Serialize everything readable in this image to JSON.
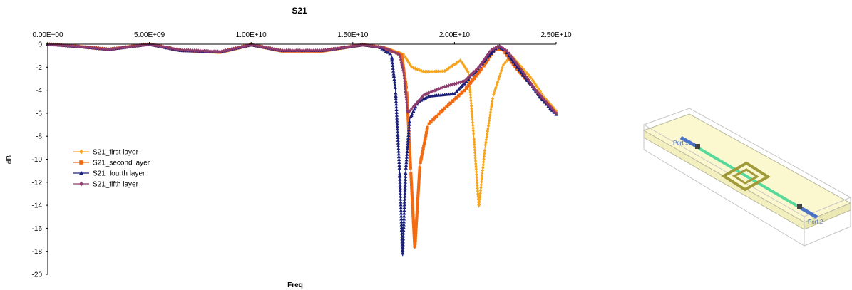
{
  "chart_data": {
    "type": "line",
    "title": "S21",
    "xlabel": "Freq",
    "ylabel": "dB",
    "xlim": [
      0,
      25000000000
    ],
    "ylim": [
      -20,
      0
    ],
    "x_axis_position": "top",
    "grid": false,
    "legend_position": "left",
    "xticks": [
      0,
      5000000000,
      10000000000,
      15000000000,
      20000000000,
      25000000000
    ],
    "xtick_labels": [
      "0.00E+00",
      "5.00E+09",
      "1.00E+10",
      "1.50E+10",
      "2.00E+10",
      "2.50E+10"
    ],
    "yticks": [
      0,
      -2,
      -4,
      -6,
      -8,
      -10,
      -12,
      -14,
      -16,
      -18,
      -20
    ],
    "ytick_labels": [
      "0",
      "-2",
      "-4",
      "-6",
      "-8",
      "-10",
      "-12",
      "-14",
      "-16",
      "-18",
      "-20"
    ],
    "series": [
      {
        "name": "S21_first layer",
        "color": "#f7a51d",
        "marker": "diamond",
        "points": [
          [
            0,
            0
          ],
          [
            1500000000.0,
            -0.2
          ],
          [
            3000000000.0,
            -0.45
          ],
          [
            5000000000.0,
            0
          ],
          [
            6500000000.0,
            -0.5
          ],
          [
            8500000000.0,
            -0.7
          ],
          [
            10000000000.0,
            -0.05
          ],
          [
            11500000000.0,
            -0.55
          ],
          [
            13500000000.0,
            -0.6
          ],
          [
            15500000000.0,
            -0.05
          ],
          [
            16500000000.0,
            -0.3
          ],
          [
            17500000000.0,
            -0.9
          ],
          [
            17900000000.0,
            -2.0
          ],
          [
            18500000000.0,
            -2.4
          ],
          [
            19500000000.0,
            -2.35
          ],
          [
            20300000000.0,
            -1.4
          ],
          [
            20700000000.0,
            -2.5
          ],
          [
            20950000000.0,
            -8.0
          ],
          [
            21200000000.0,
            -14.2
          ],
          [
            21500000000.0,
            -9.0
          ],
          [
            21900000000.0,
            -4.5
          ],
          [
            22400000000.0,
            -1.8
          ],
          [
            22800000000.0,
            -1.0
          ],
          [
            23200000000.0,
            -1.8
          ],
          [
            23800000000.0,
            -3.0
          ],
          [
            24400000000.0,
            -4.6
          ],
          [
            25000000000.0,
            -5.8
          ]
        ]
      },
      {
        "name": "S21_second layer",
        "color": "#f26b12",
        "marker": "square",
        "points": [
          [
            0,
            0
          ],
          [
            1500000000.0,
            -0.2
          ],
          [
            3000000000.0,
            -0.45
          ],
          [
            5000000000.0,
            0
          ],
          [
            6500000000.0,
            -0.55
          ],
          [
            8500000000.0,
            -0.7
          ],
          [
            10000000000.0,
            -0.05
          ],
          [
            11500000000.0,
            -0.6
          ],
          [
            13500000000.0,
            -0.6
          ],
          [
            15500000000.0,
            -0.05
          ],
          [
            16500000000.0,
            -0.3
          ],
          [
            17400000000.0,
            -0.9
          ],
          [
            17650000000.0,
            -4.0
          ],
          [
            17850000000.0,
            -11.0
          ],
          [
            18050000000.0,
            -17.8
          ],
          [
            18300000000.0,
            -10.5
          ],
          [
            18700000000.0,
            -7.0
          ],
          [
            19500000000.0,
            -5.6
          ],
          [
            20500000000.0,
            -4.0
          ],
          [
            21400000000.0,
            -2.0
          ],
          [
            22000000000.0,
            -0.4
          ],
          [
            22400000000.0,
            -0.5
          ],
          [
            23000000000.0,
            -2.0
          ],
          [
            23800000000.0,
            -3.6
          ],
          [
            24400000000.0,
            -4.9
          ],
          [
            25000000000.0,
            -6.0
          ]
        ]
      },
      {
        "name": "S21_fourth layer",
        "color": "#1a1f7a",
        "marker": "triangle",
        "points": [
          [
            0,
            0
          ],
          [
            1500000000.0,
            -0.2
          ],
          [
            3000000000.0,
            -0.45
          ],
          [
            5000000000.0,
            0
          ],
          [
            6500000000.0,
            -0.55
          ],
          [
            8500000000.0,
            -0.65
          ],
          [
            10000000000.0,
            -0.05
          ],
          [
            11500000000.0,
            -0.55
          ],
          [
            13500000000.0,
            -0.55
          ],
          [
            15500000000.0,
            -0.05
          ],
          [
            16300000000.0,
            -0.25
          ],
          [
            16900000000.0,
            -0.9
          ],
          [
            17100000000.0,
            -4.0
          ],
          [
            17300000000.0,
            -11.0
          ],
          [
            17450000000.0,
            -18.4
          ],
          [
            17600000000.0,
            -11.0
          ],
          [
            17800000000.0,
            -6.5
          ],
          [
            18200000000.0,
            -5.0
          ],
          [
            18800000000.0,
            -4.5
          ],
          [
            20000000000.0,
            -4.3
          ],
          [
            20800000000.0,
            -2.8
          ],
          [
            21600000000.0,
            -1.2
          ],
          [
            22100000000.0,
            -0.2
          ],
          [
            22500000000.0,
            -0.5
          ],
          [
            23000000000.0,
            -1.8
          ],
          [
            23800000000.0,
            -3.6
          ],
          [
            24400000000.0,
            -5.0
          ],
          [
            25000000000.0,
            -6.1
          ]
        ]
      },
      {
        "name": "S21_fifth layer",
        "color": "#8e3b6e",
        "marker": "diamond",
        "points": [
          [
            0,
            0
          ],
          [
            1500000000.0,
            -0.2
          ],
          [
            3000000000.0,
            -0.45
          ],
          [
            5000000000.0,
            0
          ],
          [
            6500000000.0,
            -0.5
          ],
          [
            8500000000.0,
            -0.65
          ],
          [
            10000000000.0,
            -0.05
          ],
          [
            11500000000.0,
            -0.55
          ],
          [
            13500000000.0,
            -0.55
          ],
          [
            15500000000.0,
            -0.05
          ],
          [
            16500000000.0,
            -0.3
          ],
          [
            17300000000.0,
            -0.9
          ],
          [
            17500000000.0,
            -2.5
          ],
          [
            17700000000.0,
            -6.0
          ],
          [
            17900000000.0,
            -5.6
          ],
          [
            18500000000.0,
            -4.4
          ],
          [
            19500000000.0,
            -3.7
          ],
          [
            20500000000.0,
            -3.2
          ],
          [
            21200000000.0,
            -2.0
          ],
          [
            21800000000.0,
            -0.5
          ],
          [
            22200000000.0,
            -0.15
          ],
          [
            22600000000.0,
            -0.6
          ],
          [
            23200000000.0,
            -2.0
          ],
          [
            24000000000.0,
            -4.0
          ],
          [
            24500000000.0,
            -5.0
          ],
          [
            25000000000.0,
            -6.0
          ]
        ]
      }
    ]
  },
  "inset": {
    "port1_label": "Port 1",
    "port2_label": "Port 2"
  }
}
